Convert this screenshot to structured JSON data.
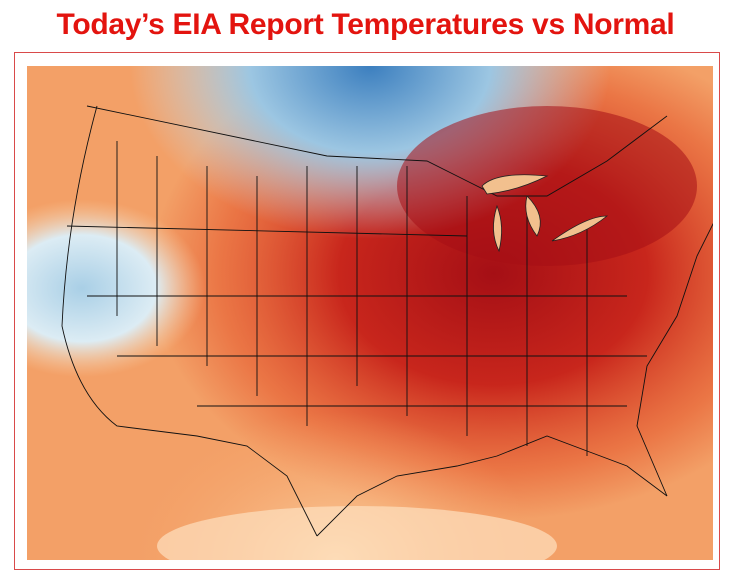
{
  "title": "Today’s EIA Report Temperatures vs Normal"
}
